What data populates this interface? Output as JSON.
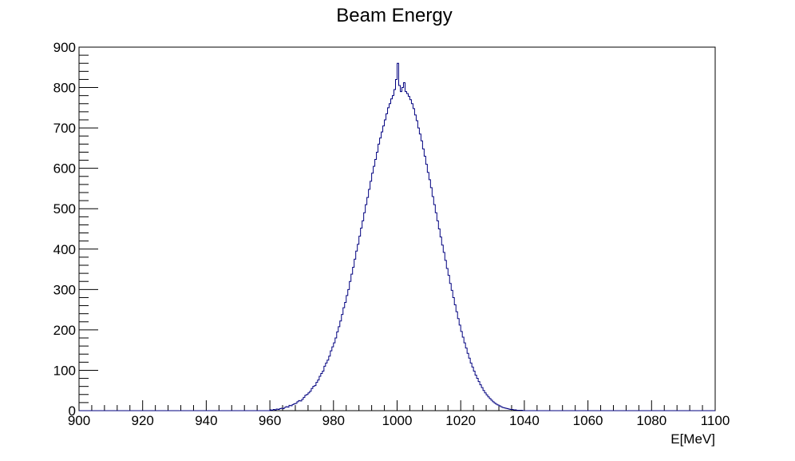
{
  "chart_data": {
    "type": "histogram",
    "title": "Beam Energy",
    "xlabel": "E[MeV]",
    "ylabel": "",
    "xlim": [
      900,
      1100
    ],
    "ylim": [
      0,
      900
    ],
    "x_ticks": [
      "900",
      "920",
      "940",
      "960",
      "980",
      "1000",
      "1020",
      "1040",
      "1060",
      "1080",
      "1100"
    ],
    "y_ticks": [
      "0",
      "100",
      "200",
      "300",
      "400",
      "500",
      "600",
      "700",
      "800",
      "900"
    ],
    "grid": false,
    "legend": "none",
    "line_color": "#00007f",
    "series": [
      {
        "bin_width": 0.5,
        "bin_centers": [
          960.25,
          960.75,
          961.25,
          961.75,
          962.25,
          962.75,
          963.25,
          963.75,
          964.25,
          964.75,
          965.25,
          965.75,
          966.25,
          966.75,
          967.25,
          967.75,
          968.25,
          968.75,
          969.25,
          969.75,
          970.25,
          970.75,
          971.25,
          971.75,
          972.25,
          972.75,
          973.25,
          973.75,
          974.25,
          974.75,
          975.25,
          975.75,
          976.25,
          976.75,
          977.25,
          977.75,
          978.25,
          978.75,
          979.25,
          979.75,
          980.25,
          980.75,
          981.25,
          981.75,
          982.25,
          982.75,
          983.25,
          983.75,
          984.25,
          984.75,
          985.25,
          985.75,
          986.25,
          986.75,
          987.25,
          987.75,
          988.25,
          988.75,
          989.25,
          989.75,
          990.25,
          990.75,
          991.25,
          991.75,
          992.25,
          992.75,
          993.25,
          993.75,
          994.25,
          994.75,
          995.25,
          995.75,
          996.25,
          996.75,
          997.25,
          997.75,
          998.25,
          998.75,
          999.25,
          999.75,
          1000.25,
          1000.75,
          1001.25,
          1001.75,
          1002.25,
          1002.75,
          1003.25,
          1003.75,
          1004.25,
          1004.75,
          1005.25,
          1005.75,
          1006.25,
          1006.75,
          1007.25,
          1007.75,
          1008.25,
          1008.75,
          1009.25,
          1009.75,
          1010.25,
          1010.75,
          1011.25,
          1011.75,
          1012.25,
          1012.75,
          1013.25,
          1013.75,
          1014.25,
          1014.75,
          1015.25,
          1015.75,
          1016.25,
          1016.75,
          1017.25,
          1017.75,
          1018.25,
          1018.75,
          1019.25,
          1019.75,
          1020.25,
          1020.75,
          1021.25,
          1021.75,
          1022.25,
          1022.75,
          1023.25,
          1023.75,
          1024.25,
          1024.75,
          1025.25,
          1025.75,
          1026.25,
          1026.75,
          1027.25,
          1027.75,
          1028.25,
          1028.75,
          1029.25,
          1029.75,
          1030.25,
          1030.75,
          1031.25,
          1031.75,
          1032.25,
          1032.75,
          1033.25,
          1033.75,
          1034.25,
          1034.75,
          1035.25,
          1035.75,
          1036.25,
          1036.75,
          1037.25,
          1037.75,
          1038.25,
          1038.75,
          1039.25,
          1039.75
        ],
        "values": [
          2,
          1,
          3,
          2,
          4,
          3,
          5,
          6,
          5,
          8,
          10,
          9,
          13,
          12,
          15,
          17,
          18,
          22,
          25,
          24,
          28,
          33,
          38,
          40,
          44,
          48,
          55,
          60,
          62,
          70,
          76,
          85,
          92,
          98,
          110,
          118,
          125,
          135,
          148,
          158,
          168,
          180,
          195,
          208,
          222,
          238,
          255,
          268,
          285,
          300,
          320,
          338,
          355,
          375,
          395,
          412,
          432,
          452,
          470,
          490,
          510,
          528,
          548,
          568,
          588,
          605,
          622,
          640,
          660,
          675,
          690,
          705,
          720,
          735,
          750,
          760,
          772,
          780,
          795,
          820,
          860,
          805,
          790,
          800,
          812,
          790,
          785,
          778,
          770,
          760,
          748,
          732,
          718,
          700,
          685,
          668,
          648,
          630,
          610,
          590,
          572,
          552,
          530,
          510,
          490,
          470,
          450,
          430,
          410,
          392,
          372,
          352,
          335,
          315,
          298,
          280,
          262,
          245,
          228,
          212,
          196,
          182,
          168,
          155,
          142,
          130,
          118,
          108,
          98,
          88,
          80,
          72,
          64,
          57,
          50,
          44,
          39,
          34,
          30,
          26,
          22,
          19,
          16,
          14,
          12,
          10,
          8,
          7,
          6,
          5,
          4,
          3,
          3,
          2,
          2,
          1,
          1,
          1,
          1,
          0
        ]
      }
    ]
  }
}
